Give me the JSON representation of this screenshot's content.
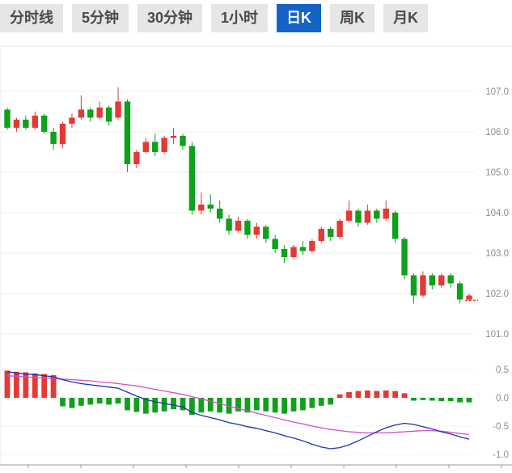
{
  "tabs": {
    "items": [
      {
        "id": "timeline",
        "label": "分时线",
        "active": false
      },
      {
        "id": "5min",
        "label": "5分钟",
        "active": false
      },
      {
        "id": "30min",
        "label": "30分钟",
        "active": false
      },
      {
        "id": "1hour",
        "label": "1小时",
        "active": false
      },
      {
        "id": "daily",
        "label": "日K",
        "active": true
      },
      {
        "id": "weekly",
        "label": "周K",
        "active": false
      },
      {
        "id": "monthly",
        "label": "月K",
        "active": false
      }
    ]
  },
  "colors": {
    "up": "#e53935",
    "down": "#0fa01c",
    "dif": "#2230b4",
    "dea": "#d44fc8",
    "grid": "#ededed",
    "grid_faint": "#f3f3f3",
    "axis_line": "#9a9a9a",
    "axis_text": "#8c8c8c",
    "active_tab_bg": "#1464c8",
    "tab_bg": "#e6e6e6"
  },
  "chart_data": {
    "type": "candlestick",
    "panels": [
      "price_kline",
      "macd"
    ],
    "legend_position": "none",
    "grid": true,
    "price_axis": {
      "max": 107.0,
      "min": 101.0,
      "ticks": [
        {
          "v": 107.0,
          "label": "107.0"
        },
        {
          "v": 106.0,
          "label": "106.0"
        },
        {
          "v": 105.0,
          "label": "105.0"
        },
        {
          "v": 104.0,
          "label": "104.0"
        },
        {
          "v": 103.0,
          "label": "103.0"
        },
        {
          "v": 102.0,
          "label": "102.0"
        },
        {
          "v": 101.0,
          "label": "101.0"
        }
      ]
    },
    "macd_axis": {
      "ticks": [
        {
          "v": 0.5,
          "label": "0.5"
        },
        {
          "v": 0.0,
          "label": "0.0"
        },
        {
          "v": -0.5,
          "label": "-0.5"
        },
        {
          "v": -1.0,
          "label": "-1.0"
        }
      ]
    },
    "candles": [
      [
        106.55,
        106.6,
        106.05,
        106.1
      ],
      [
        106.1,
        106.35,
        106.0,
        106.3
      ],
      [
        106.3,
        106.4,
        106.05,
        106.1
      ],
      [
        106.1,
        106.5,
        106.05,
        106.4
      ],
      [
        106.4,
        106.45,
        105.95,
        106.0
      ],
      [
        106.0,
        106.1,
        105.55,
        105.7
      ],
      [
        105.7,
        106.25,
        105.6,
        106.2
      ],
      [
        106.2,
        106.45,
        106.1,
        106.35
      ],
      [
        106.35,
        106.9,
        106.3,
        106.55
      ],
      [
        106.55,
        106.6,
        106.25,
        106.35
      ],
      [
        106.35,
        106.75,
        106.3,
        106.6
      ],
      [
        106.6,
        106.65,
        106.15,
        106.25
      ],
      [
        106.35,
        107.1,
        106.3,
        106.75
      ],
      [
        106.75,
        106.8,
        105.0,
        105.2
      ],
      [
        105.2,
        105.55,
        105.1,
        105.5
      ],
      [
        105.5,
        105.85,
        105.45,
        105.75
      ],
      [
        105.75,
        105.95,
        105.4,
        105.5
      ],
      [
        105.5,
        105.9,
        105.45,
        105.85
      ],
      [
        105.85,
        106.1,
        105.7,
        105.9
      ],
      [
        105.9,
        105.95,
        105.55,
        105.65
      ],
      [
        105.65,
        105.75,
        103.95,
        104.05
      ],
      [
        104.05,
        104.5,
        103.95,
        104.2
      ],
      [
        104.2,
        104.45,
        104.0,
        104.1
      ],
      [
        104.1,
        104.3,
        103.75,
        103.85
      ],
      [
        103.85,
        103.95,
        103.45,
        103.55
      ],
      [
        103.55,
        103.9,
        103.5,
        103.8
      ],
      [
        103.8,
        103.85,
        103.35,
        103.45
      ],
      [
        103.45,
        103.75,
        103.35,
        103.65
      ],
      [
        103.65,
        103.7,
        103.25,
        103.35
      ],
      [
        103.35,
        103.45,
        103.0,
        103.1
      ],
      [
        103.1,
        103.2,
        102.75,
        102.9
      ],
      [
        102.9,
        103.2,
        102.85,
        103.15
      ],
      [
        103.15,
        103.3,
        102.95,
        103.05
      ],
      [
        103.05,
        103.35,
        103.0,
        103.3
      ],
      [
        103.3,
        103.65,
        103.25,
        103.6
      ],
      [
        103.6,
        103.65,
        103.3,
        103.4
      ],
      [
        103.4,
        103.85,
        103.35,
        103.8
      ],
      [
        103.8,
        104.3,
        103.75,
        104.05
      ],
      [
        104.05,
        104.1,
        103.65,
        103.75
      ],
      [
        103.75,
        104.2,
        103.7,
        104.05
      ],
      [
        104.05,
        104.1,
        103.75,
        103.85
      ],
      [
        103.85,
        104.3,
        103.8,
        104.1
      ],
      [
        104.0,
        104.05,
        103.25,
        103.35
      ],
      [
        103.35,
        103.4,
        102.35,
        102.45
      ],
      [
        102.45,
        102.5,
        101.75,
        101.95
      ],
      [
        101.95,
        102.55,
        101.9,
        102.45
      ],
      [
        102.45,
        102.5,
        102.1,
        102.2
      ],
      [
        102.2,
        102.5,
        102.15,
        102.45
      ],
      [
        102.45,
        102.5,
        102.15,
        102.25
      ],
      [
        102.25,
        102.3,
        101.75,
        101.85
      ],
      [
        101.85,
        102.0,
        101.8,
        101.95
      ]
    ],
    "macd": {
      "histogram": [
        0.48,
        0.46,
        0.45,
        0.43,
        0.42,
        0.4,
        -0.15,
        -0.18,
        -0.14,
        -0.12,
        -0.1,
        -0.12,
        -0.1,
        -0.22,
        -0.25,
        -0.28,
        -0.26,
        -0.24,
        -0.2,
        -0.22,
        -0.3,
        -0.26,
        -0.24,
        -0.26,
        -0.28,
        -0.24,
        -0.26,
        -0.22,
        -0.24,
        -0.26,
        -0.28,
        -0.24,
        -0.22,
        -0.18,
        -0.14,
        -0.12,
        0.06,
        0.1,
        0.12,
        0.13,
        0.12,
        0.13,
        0.12,
        0.08,
        -0.05,
        -0.04,
        -0.05,
        -0.06,
        -0.06,
        -0.08,
        -0.08
      ],
      "dif": [
        0.46,
        0.44,
        0.42,
        0.41,
        0.39,
        0.37,
        0.32,
        0.28,
        0.25,
        0.23,
        0.21,
        0.19,
        0.17,
        0.1,
        0.03,
        -0.03,
        -0.07,
        -0.1,
        -0.13,
        -0.16,
        -0.26,
        -0.31,
        -0.35,
        -0.39,
        -0.44,
        -0.47,
        -0.51,
        -0.54,
        -0.58,
        -0.62,
        -0.67,
        -0.71,
        -0.76,
        -0.82,
        -0.87,
        -0.9,
        -0.88,
        -0.83,
        -0.76,
        -0.68,
        -0.6,
        -0.53,
        -0.48,
        -0.45,
        -0.47,
        -0.51,
        -0.55,
        -0.6,
        -0.64,
        -0.69,
        -0.73
      ],
      "dea": [
        0.39,
        0.38,
        0.37,
        0.36,
        0.35,
        0.34,
        0.33,
        0.32,
        0.31,
        0.3,
        0.28,
        0.27,
        0.25,
        0.23,
        0.21,
        0.18,
        0.15,
        0.12,
        0.09,
        0.06,
        0.02,
        -0.02,
        -0.06,
        -0.1,
        -0.15,
        -0.19,
        -0.23,
        -0.27,
        -0.31,
        -0.35,
        -0.39,
        -0.43,
        -0.46,
        -0.5,
        -0.53,
        -0.56,
        -0.58,
        -0.6,
        -0.61,
        -0.62,
        -0.62,
        -0.62,
        -0.61,
        -0.6,
        -0.59,
        -0.58,
        -0.58,
        -0.59,
        -0.61,
        -0.63,
        -0.65
      ]
    }
  }
}
